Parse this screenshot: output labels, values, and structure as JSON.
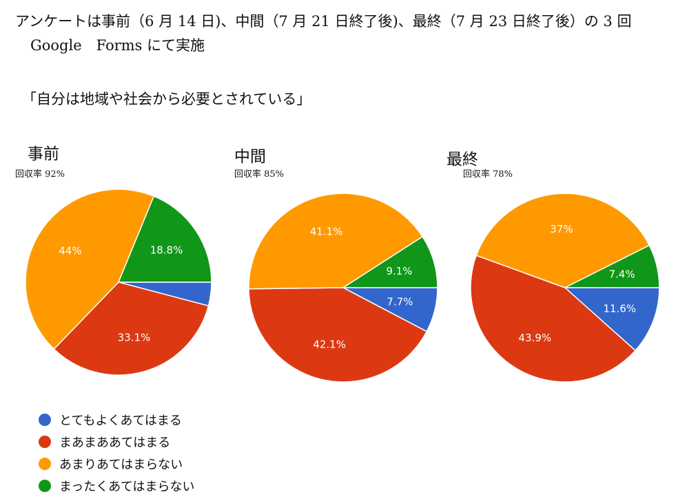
{
  "intro": {
    "line1": "アンケートは事前（6 月 14 日)、中間（7 月 21 日終了後)、最終（7 月 23 日終了後）の 3 回",
    "line2": "Google　Forms にて実施"
  },
  "question": "「自分は地域や社会から必要とされている」",
  "colors": {
    "blue": "#3366cc",
    "red": "#dc3912",
    "orange": "#ff9900",
    "green": "#109618"
  },
  "chart_data": [
    {
      "type": "pie",
      "title": "事前",
      "subtitle": "回収率 92%",
      "categories": [
        "とてもよくあてはまる",
        "まあまああてはまる",
        "あまりあてはまらない",
        "まったくあてはまらない"
      ],
      "values": [
        4.1,
        33.1,
        44,
        18.8
      ],
      "labels": [
        "",
        "33.1%",
        "44%",
        "18.8%"
      ]
    },
    {
      "type": "pie",
      "title": "中間",
      "subtitle": "回収率 85%",
      "categories": [
        "とてもよくあてはまる",
        "まあまああてはまる",
        "あまりあてはまらない",
        "まったくあてはまらない"
      ],
      "values": [
        7.7,
        42.1,
        41.1,
        9.1
      ],
      "labels": [
        "7.7%",
        "42.1%",
        "41.1%",
        "9.1%"
      ]
    },
    {
      "type": "pie",
      "title": "最終",
      "subtitle": "回収率 78%",
      "categories": [
        "とてもよくあてはまる",
        "まあまああてはまる",
        "あまりあてはまらない",
        "まったくあてはまらない"
      ],
      "values": [
        11.6,
        43.9,
        37,
        7.4
      ],
      "labels": [
        "11.6%",
        "43.9%",
        "37%",
        "7.4%"
      ]
    }
  ],
  "legend": [
    {
      "label": "とてもよくあてはまる",
      "color": "#3366cc"
    },
    {
      "label": "まあまああてはまる",
      "color": "#dc3912"
    },
    {
      "label": "あまりあてはまらない",
      "color": "#ff9900"
    },
    {
      "label": "まったくあてはまらない",
      "color": "#109618"
    }
  ]
}
